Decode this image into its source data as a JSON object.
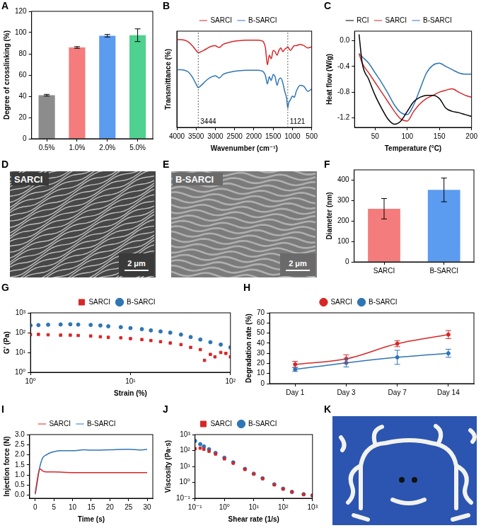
{
  "chart_data": [
    {
      "panel": "A",
      "type": "bar",
      "categories": [
        "0.5%",
        "1.0%",
        "2.0%",
        "5.0%"
      ],
      "values": [
        41,
        86,
        97,
        97.5
      ],
      "errors": [
        0.8,
        0.8,
        1.2,
        6
      ],
      "colors": [
        "#8c8c8c",
        "#f47c7c",
        "#5b9bf0",
        "#4fd18f"
      ],
      "ylabel": "Degree of crosslinking (%)",
      "ylim": [
        0,
        120
      ],
      "yticks": [
        0,
        20,
        40,
        60,
        80,
        100,
        120
      ],
      "grid": false
    },
    {
      "panel": "B",
      "type": "line",
      "xlabel": "Wavenumber (cm⁻¹)",
      "ylabel": "Transmittance (%)",
      "xlim": [
        4000,
        500
      ],
      "xticks": [
        4000,
        3500,
        3000,
        2500,
        2000,
        1500,
        1000,
        500
      ],
      "ylim": [
        20,
        100
      ],
      "tick_labels": "x",
      "grid": false,
      "legend": "top",
      "x": [
        4000,
        3900,
        3800,
        3700,
        3600,
        3500,
        3444,
        3400,
        3300,
        3200,
        3100,
        3000,
        2950,
        2900,
        2800,
        2600,
        2400,
        2200,
        2000,
        1900,
        1800,
        1750,
        1700,
        1650,
        1600,
        1550,
        1500,
        1450,
        1400,
        1350,
        1300,
        1250,
        1200,
        1150,
        1121,
        1100,
        1050,
        1000,
        950,
        900,
        800,
        700,
        600,
        500
      ],
      "series": [
        {
          "name": "SARCI",
          "color": "#d62728",
          "marker": "none",
          "line_style": "solid",
          "values": [
            93,
            93,
            92.5,
            91,
            88,
            84,
            82,
            82.5,
            84,
            86,
            87.5,
            88,
            87,
            86.5,
            89,
            91,
            92,
            92.5,
            92.5,
            92.5,
            92,
            91,
            86,
            72,
            80,
            77,
            84,
            83,
            80,
            84,
            86,
            83,
            85,
            86,
            87,
            86,
            84,
            86,
            88,
            88,
            89,
            88,
            86,
            87
          ]
        },
        {
          "name": "B-SARCI",
          "color": "#2f75b5",
          "marker": "none",
          "line_style": "solid",
          "values": [
            68,
            68,
            67.5,
            66,
            62,
            56,
            53,
            54,
            57,
            60,
            62,
            63,
            62,
            61,
            64,
            66,
            67,
            67.5,
            67.5,
            67.5,
            67,
            66,
            63,
            56,
            62,
            59,
            64,
            62,
            55,
            60,
            61,
            57,
            50,
            44,
            36,
            40,
            43,
            46,
            45,
            50,
            55,
            54,
            50,
            52
          ]
        }
      ],
      "annotations": [
        {
          "x": 3444,
          "text": "3444"
        },
        {
          "x": 1121,
          "text": "1121"
        }
      ]
    },
    {
      "panel": "C",
      "type": "line",
      "xlabel": "Temperature (°C)",
      "ylabel": "Heat flow (W/g)",
      "xlim": [
        18,
        200
      ],
      "xticks": [
        50,
        100,
        150,
        200
      ],
      "ylim": [
        -1.35,
        0.15
      ],
      "yticks": [
        -1.2,
        -0.8,
        -0.4,
        {
          "value": 0,
          "label": "0.0"
        }
      ],
      "grid": false,
      "legend": "top",
      "x": [
        25,
        30,
        40,
        50,
        60,
        70,
        80,
        90,
        100,
        110,
        120,
        130,
        140,
        150,
        160,
        170,
        180,
        190,
        200
      ],
      "series": [
        {
          "name": "RCI",
          "color": "#000000",
          "marker": "none",
          "line_style": "solid",
          "values": [
            0.1,
            -0.35,
            -0.6,
            -0.85,
            -1.05,
            -1.22,
            -1.3,
            -1.25,
            -1.1,
            -0.95,
            -0.88,
            -0.85,
            -0.85,
            -0.9,
            -1.05,
            -1.1,
            -1.12,
            -1.15,
            -1.18
          ]
        },
        {
          "name": "SARCI",
          "color": "#d62728",
          "marker": "none",
          "line_style": "solid",
          "values": [
            -0.2,
            -0.35,
            -0.5,
            -0.65,
            -0.8,
            -0.95,
            -1.1,
            -1.22,
            -1.25,
            -1.1,
            -0.98,
            -0.9,
            -0.85,
            -0.8,
            -0.77,
            -0.75,
            -0.8,
            -0.85,
            -0.88
          ]
        },
        {
          "name": "B-SARCI",
          "color": "#2f75b5",
          "marker": "none",
          "line_style": "solid",
          "values": [
            -0.2,
            -0.25,
            -0.35,
            -0.5,
            -0.65,
            -0.82,
            -1.0,
            -1.12,
            -1.15,
            -1.0,
            -0.75,
            -0.5,
            -0.38,
            -0.35,
            -0.4,
            -0.45,
            -0.5,
            -0.52,
            -0.52
          ]
        }
      ]
    },
    {
      "panel": "F",
      "type": "bar",
      "categories": [
        "SARCI",
        "B-SARCI"
      ],
      "values": [
        260,
        352
      ],
      "errors": [
        50,
        58
      ],
      "colors": [
        "#f47c7c",
        "#5b9bf0"
      ],
      "ylabel": "Diameter (nm)",
      "ylim": [
        0,
        450
      ],
      "yticks": [
        0,
        100,
        200,
        300,
        400
      ],
      "grid": false
    },
    {
      "panel": "G",
      "type": "scatter",
      "log": true,
      "xlabel": "Strain (%)",
      "ylabel": "G' (Pa)",
      "xlim": [
        1,
        100
      ],
      "xticks": [
        {
          "value": 1,
          "label": "10⁰"
        },
        {
          "value": 10,
          "label": "10¹"
        },
        {
          "value": 100,
          "label": "10²"
        }
      ],
      "ylim": [
        1,
        1000
      ],
      "yticks": [
        {
          "value": 1,
          "label": "10⁰"
        },
        {
          "value": 10,
          "label": "10¹"
        },
        {
          "value": 100,
          "label": "10²"
        },
        {
          "value": 1000,
          "label": "10³"
        }
      ],
      "grid": false,
      "legend": "top",
      "series": [
        {
          "name": "SARCI",
          "color": "#d62728",
          "marker": "square",
          "line_style": "none",
          "x": [
            1,
            1.2,
            1.5,
            2,
            2.5,
            3,
            4,
            5,
            6,
            8,
            10,
            13,
            16,
            20,
            25,
            32,
            40,
            50,
            55,
            63,
            70,
            80,
            90,
            100
          ],
          "values": [
            80,
            82,
            78,
            75,
            75,
            72,
            68,
            62,
            58,
            55,
            50,
            45,
            40,
            35,
            30,
            25,
            18,
            14,
            4,
            8,
            6,
            10,
            9,
            6
          ]
        },
        {
          "name": "B-SARCI",
          "color": "#2f75b5",
          "marker": "circle",
          "line_style": "none",
          "x": [
            1,
            1.2,
            1.5,
            2,
            2.5,
            3,
            4,
            5,
            6,
            8,
            10,
            13,
            16,
            20,
            25,
            32,
            40,
            50,
            63,
            80,
            100
          ],
          "values": [
            230,
            240,
            250,
            260,
            265,
            255,
            245,
            230,
            210,
            190,
            170,
            150,
            130,
            115,
            100,
            80,
            60,
            45,
            33,
            25,
            18
          ]
        }
      ]
    },
    {
      "panel": "H",
      "type": "line",
      "categories": [
        "Day 1",
        "Day 3",
        "Day 7",
        "Day 14"
      ],
      "ylabel": "Degradation rate (%)",
      "ylim": [
        0,
        70
      ],
      "yticks": [
        0,
        10,
        20,
        30,
        40,
        50,
        60,
        70
      ],
      "grid": false,
      "legend": "top",
      "series": [
        {
          "name": "SARCI",
          "color": "#d62728",
          "marker": "circle",
          "line_style": "solid",
          "values": [
            19,
            24.5,
            39.5,
            48.5
          ],
          "errors": [
            3,
            4,
            3,
            4
          ]
        },
        {
          "name": "B-SARCI",
          "color": "#2f75b5",
          "marker": "circle",
          "line_style": "solid",
          "values": [
            14,
            20.5,
            26,
            30
          ],
          "errors": [
            2,
            4,
            7,
            4
          ]
        }
      ]
    },
    {
      "panel": "I",
      "type": "line",
      "xlabel": "Time (s)",
      "ylabel": "Injection force (N)",
      "xlim": [
        -1.5,
        31.5
      ],
      "xticks": [
        0,
        5,
        10,
        15,
        20,
        25,
        30
      ],
      "ylim": [
        -0.15,
        3
      ],
      "yticks": [
        {
          "value": 0,
          "label": "0.0"
        },
        0.5,
        {
          "value": 1,
          "label": "1.0"
        },
        1.5,
        {
          "value": 2,
          "label": "2.0"
        },
        2.5,
        {
          "value": 3,
          "label": "3.0"
        }
      ],
      "grid": false,
      "legend": "top",
      "series": [
        {
          "name": "SARCI",
          "color": "#d62728",
          "marker": "none",
          "line_style": "solid",
          "x": [
            0,
            0.5,
            1,
            1.3,
            2,
            3,
            5,
            10,
            15,
            20,
            25,
            30
          ],
          "values": [
            0.1,
            0.7,
            1.2,
            1.3,
            1.2,
            1.15,
            1.15,
            1.12,
            1.12,
            1.12,
            1.12,
            1.12
          ]
        },
        {
          "name": "B-SARCI",
          "color": "#2f75b5",
          "marker": "none",
          "line_style": "solid",
          "x": [
            0,
            0.5,
            1,
            1.5,
            2,
            3,
            4,
            5,
            7,
            10,
            13,
            15,
            20,
            25,
            28,
            30
          ],
          "values": [
            0.05,
            0.6,
            1.2,
            1.6,
            1.85,
            2.0,
            2.1,
            2.15,
            2.2,
            2.2,
            2.25,
            2.23,
            2.25,
            2.27,
            2.24,
            2.27
          ]
        }
      ]
    },
    {
      "panel": "J",
      "type": "scatter",
      "log": true,
      "xlabel": "Shear rate (1/s)",
      "ylabel": "Viscosity (Pa·s)",
      "xlim": [
        0.1,
        1000
      ],
      "xticks": [
        {
          "value": 0.1,
          "label": "10⁻¹"
        },
        {
          "value": 1,
          "label": "10⁰"
        },
        {
          "value": 10,
          "label": "10¹"
        },
        {
          "value": 100,
          "label": "10²"
        },
        {
          "value": 1000,
          "label": "10³"
        }
      ],
      "ylim": [
        0.1,
        1000
      ],
      "yticks": [
        {
          "value": 0.1,
          "label": "10⁻¹"
        },
        {
          "value": 1,
          "label": "10⁰"
        },
        {
          "value": 10,
          "label": "10¹"
        },
        {
          "value": 100,
          "label": "10²"
        },
        {
          "value": 1000,
          "label": "10³"
        }
      ],
      "grid": false,
      "legend": "top",
      "x": [
        0.1,
        0.15,
        0.2,
        0.3,
        0.5,
        1,
        2,
        5,
        10,
        20,
        50,
        100,
        200,
        500,
        1000
      ],
      "series": [
        {
          "name": "SARCI",
          "color": "#d62728",
          "marker": "square",
          "line_style": "none",
          "values": [
            130,
            140,
            120,
            90,
            60,
            30,
            16,
            6.5,
            3.3,
            1.7,
            0.7,
            0.38,
            0.25,
            0.17,
            0.15
          ]
        },
        {
          "name": "B-SARCI",
          "color": "#2f75b5",
          "marker": "circle",
          "line_style": "none",
          "values": [
            400,
            250,
            180,
            120,
            70,
            35,
            18,
            7,
            3.5,
            1.8,
            0.75,
            0.4,
            0.25,
            0.18,
            0.15
          ]
        }
      ]
    }
  ],
  "images": [
    {
      "panel": "D",
      "label": "SARCI",
      "scale_bar": "2 μm"
    },
    {
      "panel": "E",
      "label": "B-SARCI",
      "scale_bar": "2 μm"
    },
    {
      "panel": "K"
    }
  ]
}
